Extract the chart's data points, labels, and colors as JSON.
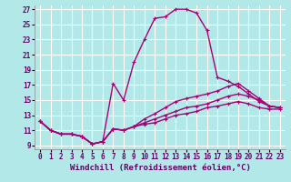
{
  "xlabel": "Windchill (Refroidissement éolien,°C)",
  "bg_color": "#b2e8e8",
  "grid_color": "#ffffff",
  "line_color": "#aa0077",
  "xlim": [
    -0.5,
    23.5
  ],
  "ylim": [
    8.5,
    27.5
  ],
  "yticks": [
    9,
    11,
    13,
    15,
    17,
    19,
    21,
    23,
    25,
    27
  ],
  "xticks": [
    0,
    1,
    2,
    3,
    4,
    5,
    6,
    7,
    8,
    9,
    10,
    11,
    12,
    13,
    14,
    15,
    16,
    17,
    18,
    19,
    20,
    21,
    22,
    23
  ],
  "lines": [
    {
      "x": [
        0,
        1,
        2,
        3,
        4,
        5,
        6,
        7,
        8,
        9,
        10,
        11,
        12,
        13,
        14,
        15,
        16,
        17,
        18,
        19,
        20,
        21,
        22,
        23
      ],
      "y": [
        12.2,
        11.0,
        10.5,
        10.5,
        10.2,
        9.2,
        9.5,
        17.2,
        15.0,
        20.0,
        23.0,
        25.8,
        26.0,
        27.0,
        27.0,
        26.5,
        24.2,
        18.0,
        17.5,
        16.8,
        15.8,
        14.8,
        14.2,
        14.0
      ]
    },
    {
      "x": [
        0,
        1,
        2,
        3,
        4,
        5,
        6,
        7,
        8,
        9,
        10,
        11,
        12,
        13,
        14,
        15,
        16,
        17,
        18,
        19,
        20,
        21,
        22,
        23
      ],
      "y": [
        12.2,
        11.0,
        10.5,
        10.5,
        10.2,
        9.2,
        9.5,
        11.2,
        11.0,
        11.5,
        12.5,
        13.2,
        14.0,
        14.8,
        15.2,
        15.5,
        15.8,
        16.2,
        16.8,
        17.2,
        16.2,
        15.2,
        14.2,
        14.0
      ]
    },
    {
      "x": [
        0,
        1,
        2,
        3,
        4,
        5,
        6,
        7,
        8,
        9,
        10,
        11,
        12,
        13,
        14,
        15,
        16,
        17,
        18,
        19,
        20,
        21,
        22,
        23
      ],
      "y": [
        12.2,
        11.0,
        10.5,
        10.5,
        10.2,
        9.2,
        9.5,
        11.2,
        11.0,
        11.5,
        12.0,
        12.5,
        13.0,
        13.5,
        14.0,
        14.2,
        14.5,
        15.0,
        15.5,
        15.8,
        15.5,
        15.0,
        14.2,
        14.0
      ]
    },
    {
      "x": [
        0,
        1,
        2,
        3,
        4,
        5,
        6,
        7,
        8,
        9,
        10,
        11,
        12,
        13,
        14,
        15,
        16,
        17,
        18,
        19,
        20,
        21,
        22,
        23
      ],
      "y": [
        12.2,
        11.0,
        10.5,
        10.5,
        10.2,
        9.2,
        9.5,
        11.2,
        11.0,
        11.5,
        11.8,
        12.0,
        12.5,
        13.0,
        13.2,
        13.5,
        14.0,
        14.2,
        14.5,
        14.8,
        14.5,
        14.0,
        13.8,
        13.8
      ]
    }
  ],
  "marker": "+",
  "marker_size": 3,
  "line_width": 1.0,
  "tick_fontsize": 5.5,
  "label_fontsize": 6.5
}
